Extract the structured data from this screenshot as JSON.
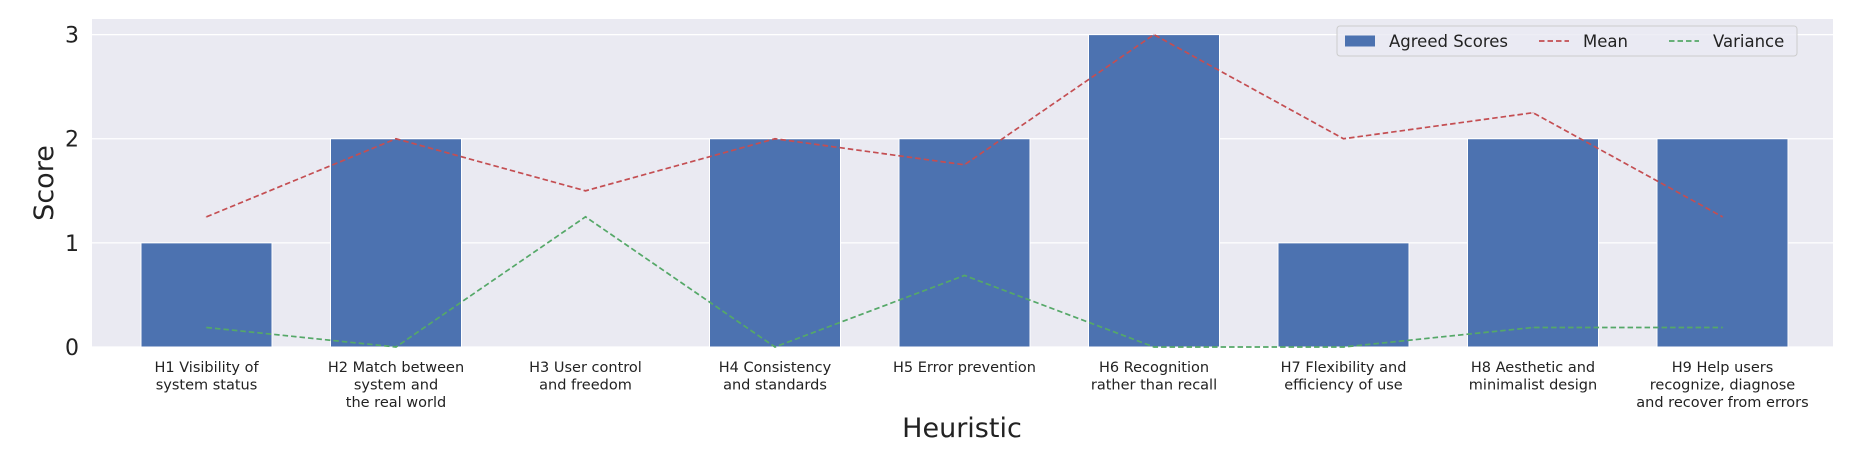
{
  "chart_data": {
    "type": "bar",
    "categories": [
      "H1 Visibility of\nsystem status",
      "H2 Match between\nsystem and\nthe real world",
      "H3 User control\nand freedom",
      "H4 Consistency\nand standards",
      "H5 Error prevention",
      "H6 Recognition\nrather than recall",
      "H7 Flexibility and\nefficiency of use",
      "H8 Aesthetic and\nminimalist design",
      "H9 Help users\nrecognize, diagnose\nand recover from errors"
    ],
    "series": [
      {
        "name": "Agreed Scores",
        "kind": "bar",
        "color": "#4c72b0",
        "values": [
          1,
          2,
          0,
          2,
          2,
          3,
          1,
          2,
          2
        ]
      },
      {
        "name": "Mean",
        "kind": "line",
        "style": "dashed",
        "color": "#c44e52",
        "values": [
          1.25,
          2.0,
          1.5,
          2.0,
          1.75,
          3.0,
          2.0,
          2.25,
          1.25
        ]
      },
      {
        "name": "Variance",
        "kind": "line",
        "style": "dashed",
        "color": "#55a868",
        "values": [
          0.1875,
          0.0,
          1.25,
          0.0,
          0.6875,
          0.0,
          0.0,
          0.1875,
          0.1875
        ]
      }
    ],
    "xlabel": "Heuristic",
    "ylabel": "Score",
    "ylim": [
      0,
      3.15
    ],
    "yticks": [
      0,
      1,
      2,
      3
    ],
    "grid": true,
    "legend_position": "top-right",
    "background": "#eaeaf2"
  }
}
